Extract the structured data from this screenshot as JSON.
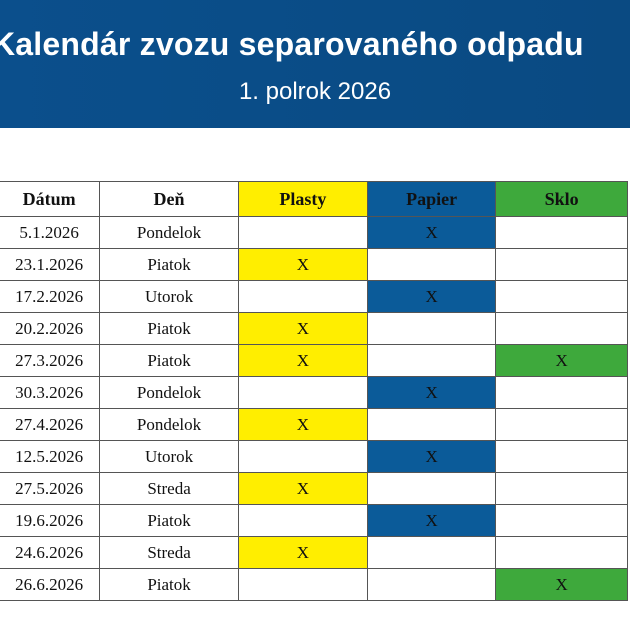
{
  "header": {
    "title": "Kalendár zvozu separovaného odpadu",
    "subtitle": "1. polrok 2026"
  },
  "colors": {
    "banner": "#0b4f8c",
    "plasty": "#ffee00",
    "papier": "#0b5b99",
    "sklo": "#3ea93c"
  },
  "table": {
    "columns": [
      "Dátum",
      "Deň",
      "Plasty",
      "Papier",
      "Sklo"
    ],
    "rows": [
      {
        "date": "5.1.2026",
        "day": "Pondelok",
        "plasty": "",
        "papier": "X",
        "sklo": ""
      },
      {
        "date": "23.1.2026",
        "day": "Piatok",
        "plasty": "X",
        "papier": "",
        "sklo": ""
      },
      {
        "date": "17.2.2026",
        "day": "Utorok",
        "plasty": "",
        "papier": "X",
        "sklo": ""
      },
      {
        "date": "20.2.2026",
        "day": "Piatok",
        "plasty": "X",
        "papier": "",
        "sklo": ""
      },
      {
        "date": "27.3.2026",
        "day": "Piatok",
        "plasty": "X",
        "papier": "",
        "sklo": "X"
      },
      {
        "date": "30.3.2026",
        "day": "Pondelok",
        "plasty": "",
        "papier": "X",
        "sklo": ""
      },
      {
        "date": "27.4.2026",
        "day": "Pondelok",
        "plasty": "X",
        "papier": "",
        "sklo": ""
      },
      {
        "date": "12.5.2026",
        "day": "Utorok",
        "plasty": "",
        "papier": "X",
        "sklo": ""
      },
      {
        "date": "27.5.2026",
        "day": "Streda",
        "plasty": "X",
        "papier": "",
        "sklo": ""
      },
      {
        "date": "19.6.2026",
        "day": "Piatok",
        "plasty": "",
        "papier": "X",
        "sklo": ""
      },
      {
        "date": "24.6.2026",
        "day": "Streda",
        "plasty": "X",
        "papier": "",
        "sklo": ""
      },
      {
        "date": "26.6.2026",
        "day": "Piatok",
        "plasty": "",
        "papier": "",
        "sklo": "X"
      }
    ]
  }
}
